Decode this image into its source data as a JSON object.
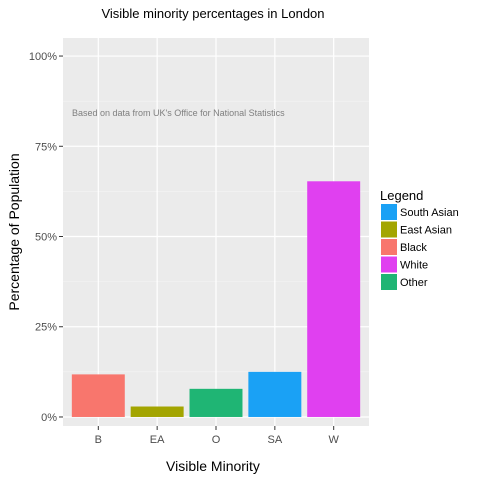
{
  "chart_data": {
    "type": "bar",
    "title": "Visible minority percentages in London",
    "xlabel": "Visible Minority",
    "ylabel": "Percentage of  Population",
    "annotation": "Based on data from UK's Office for National Statistics",
    "categories": [
      "B",
      "EA",
      "O",
      "SA",
      "W"
    ],
    "values": [
      11.8,
      2.9,
      7.8,
      12.5,
      65.3
    ],
    "bar_colors": [
      "#F8766D",
      "#A3A500",
      "#1FB574",
      "#1AA1F5",
      "#E040F0"
    ],
    "ylim": [
      -2.5,
      105
    ],
    "yticks": [
      0,
      25,
      50,
      75,
      100
    ],
    "ytick_labels": [
      "0%",
      "25%",
      "50%",
      "75%",
      "100%"
    ],
    "grid": true,
    "panel_background": "#EBEBEB",
    "legend": {
      "title": "Legend",
      "placement": "right",
      "entries": [
        {
          "label": "South Asian",
          "color": "#1AA1F5"
        },
        {
          "label": "East Asian",
          "color": "#A3A500"
        },
        {
          "label": "Black",
          "color": "#F8766D"
        },
        {
          "label": "White",
          "color": "#E040F0"
        },
        {
          "label": "Other",
          "color": "#1FB574"
        }
      ]
    }
  }
}
